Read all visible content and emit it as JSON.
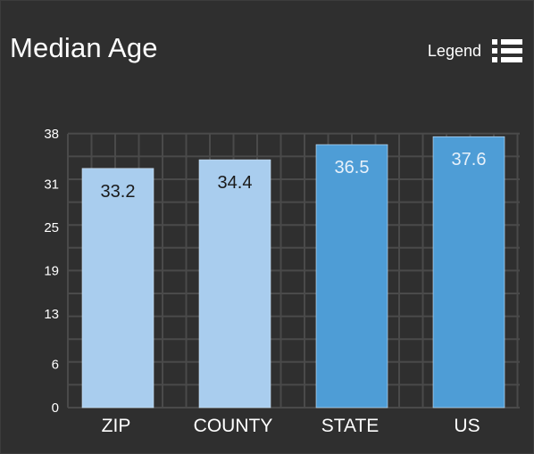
{
  "header": {
    "title": "Median Age",
    "legend_label": "Legend",
    "legend_icon": "list-icon"
  },
  "colors": {
    "background": "#2f2f2f",
    "grid": "#4a4a4a",
    "bar_light": "#a9cdee",
    "bar_dark": "#4e9dd6",
    "value_dark": "#1a1a1a",
    "value_light": "#e8f1fa",
    "axis_text": "#ffffff"
  },
  "chart_data": {
    "type": "bar",
    "categories": [
      "ZIP",
      "COUNTY",
      "STATE",
      "US"
    ],
    "values": [
      33.2,
      34.4,
      36.5,
      37.6
    ],
    "bar_colors": [
      "#a9cdee",
      "#a9cdee",
      "#4e9dd6",
      "#4e9dd6"
    ],
    "value_label_colors": [
      "#1a1a1a",
      "#1a1a1a",
      "#e8f1fa",
      "#e8f1fa"
    ],
    "y_ticks": [
      0,
      6,
      13,
      19,
      25,
      31,
      38
    ],
    "ylim": [
      0,
      38
    ],
    "grid": true
  }
}
